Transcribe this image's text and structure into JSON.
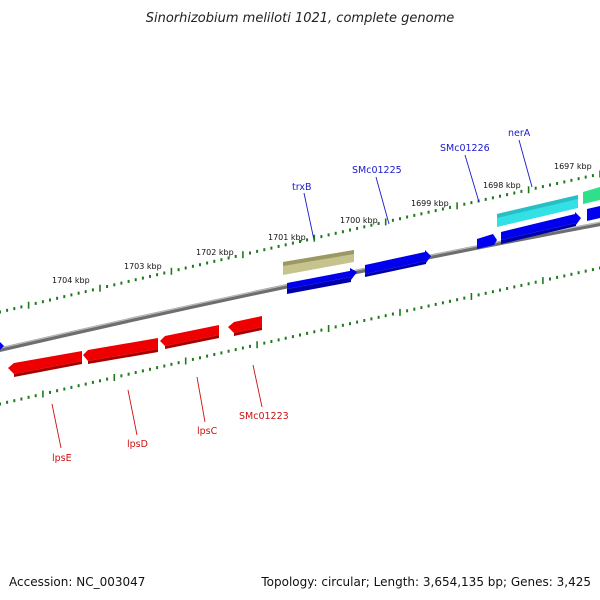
{
  "title": "Sinorhizobium meliloti 1021, complete genome",
  "footer": {
    "accession": "Accession: NC_003047",
    "summary": "Topology: circular; Length: 3,654,135 bp; Genes: 3,425"
  },
  "scale": {
    "unit": "kbp",
    "major_ticks": [
      "1704 kbp",
      "1703 kbp",
      "1702 kbp",
      "1701 kbp",
      "1700 kbp",
      "1699 kbp",
      "1698 kbp",
      "1697 kbp"
    ]
  },
  "colors": {
    "backbone": "#808080",
    "tick": "#1f7a1f",
    "forward_gene": "#0000ee",
    "reverse_gene": "#ee0000",
    "trxB": "#b5b27a",
    "nerA": "#33e0e6",
    "green_gene": "#2ee08a"
  },
  "gene_labels_forward": [
    "trxB",
    "SMc01225",
    "SMc01226",
    "nerA"
  ],
  "gene_labels_reverse": [
    "lpsE",
    "lpsD",
    "lpsC",
    "SMc01223"
  ]
}
